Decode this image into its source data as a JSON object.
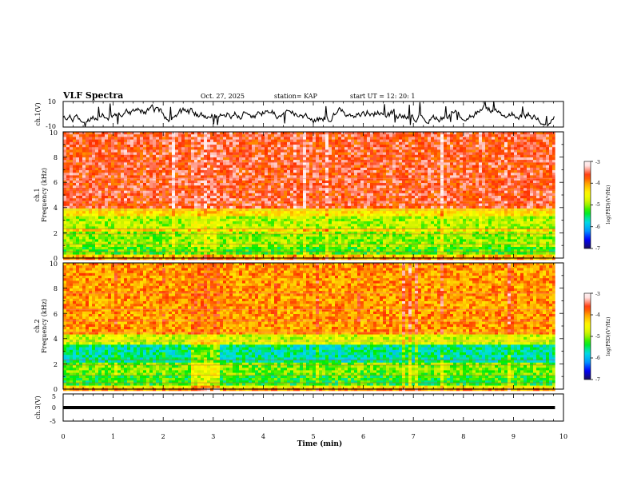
{
  "header": {
    "title": "VLF Spectra",
    "date": "Oct. 27, 2025",
    "station": "station= KAP",
    "start": "start  UT  =   12: 20: 1"
  },
  "colors": {
    "stops": [
      "#1a0d5a",
      "#0000ff",
      "#00a0ff",
      "#00e0e0",
      "#00ee00",
      "#c8f000",
      "#ffff00",
      "#ffb000",
      "#ff3000",
      "#ffe0e0",
      "#ffffff"
    ],
    "trace": "#000000"
  },
  "chart_data": [
    {
      "type": "line",
      "name": "ch1-waveform",
      "ylabel": "ch.1(V)",
      "ylim": [
        -10,
        10
      ],
      "yticks": [
        "10",
        "-10"
      ],
      "x_range_min": [
        0,
        9.83
      ],
      "description_values": "noisy waveform between about -10 and 10 V"
    },
    {
      "type": "heatmap",
      "name": "ch1-spectrogram",
      "ylabel": "ch.1\nFrequency (kHz)",
      "ylim": [
        0,
        10
      ],
      "yticks": [
        "0",
        "2",
        "4",
        "6",
        "8",
        "10"
      ],
      "band_levels_log_psd": [
        {
          "from_khz": 0,
          "to_khz": 0.3,
          "level": -4.2
        },
        {
          "from_khz": 0.3,
          "to_khz": 0.9,
          "level": -5.2
        },
        {
          "from_khz": 0.9,
          "to_khz": 2.0,
          "level": -5.0
        },
        {
          "from_khz": 2.0,
          "to_khz": 2.4,
          "level": -4.3
        },
        {
          "from_khz": 2.4,
          "to_khz": 3.4,
          "level": -4.9
        },
        {
          "from_khz": 3.4,
          "to_khz": 4.0,
          "level": -4.4
        },
        {
          "from_khz": 4.0,
          "to_khz": 10.0,
          "level": -3.6
        }
      ],
      "colorbar": {
        "label": "log(PSD)(V²/Hz)",
        "range": [
          -7,
          -3
        ],
        "ticks": [
          "-3",
          "-4",
          "-5",
          "-6",
          "-7"
        ]
      }
    },
    {
      "type": "heatmap",
      "name": "ch2-spectrogram",
      "ylabel": "ch.2\nFrequency (kHz)",
      "ylim": [
        0,
        10
      ],
      "yticks": [
        "0",
        "2",
        "4",
        "6",
        "8",
        "10"
      ],
      "band_levels_log_psd": [
        {
          "from_khz": 0,
          "to_khz": 0.3,
          "level": -4.5
        },
        {
          "from_khz": 0.3,
          "to_khz": 1.0,
          "level": -5.3
        },
        {
          "from_khz": 1.0,
          "to_khz": 2.0,
          "level": -5.1
        },
        {
          "from_khz": 2.0,
          "to_khz": 3.5,
          "level": -5.6
        },
        {
          "from_khz": 3.5,
          "to_khz": 4.3,
          "level": -4.8
        },
        {
          "from_khz": 4.3,
          "to_khz": 10.0,
          "level": -4.0
        }
      ],
      "colorbar": {
        "label": "log(PSD)(V²/Hz)",
        "range": [
          -7,
          -3
        ],
        "ticks": [
          "-3",
          "-4",
          "-5",
          "-6",
          "-7"
        ]
      }
    },
    {
      "type": "line",
      "name": "ch3-waveform",
      "ylabel": "ch.3(V)",
      "ylim": [
        -5,
        5
      ],
      "yticks": [
        "5",
        "0",
        "-5"
      ],
      "value_range": [
        -0.6,
        0.6
      ]
    }
  ],
  "xaxis": {
    "label": "Time (min)",
    "range": [
      0,
      10
    ],
    "ticks": [
      "0",
      "1",
      "2",
      "3",
      "4",
      "5",
      "6",
      "7",
      "8",
      "9",
      "10"
    ],
    "data_end": 9.83
  },
  "labels": {
    "ch1_wave": "ch.1(V)",
    "ch1_spec_a": "ch.1",
    "ch1_spec_b": "Frequency (kHz)",
    "ch2_spec_a": "ch.2",
    "ch2_spec_b": "Frequency (kHz)",
    "ch3_wave": "ch.3(V)",
    "cbar_label": "log(PSD)(V²/Hz)"
  }
}
